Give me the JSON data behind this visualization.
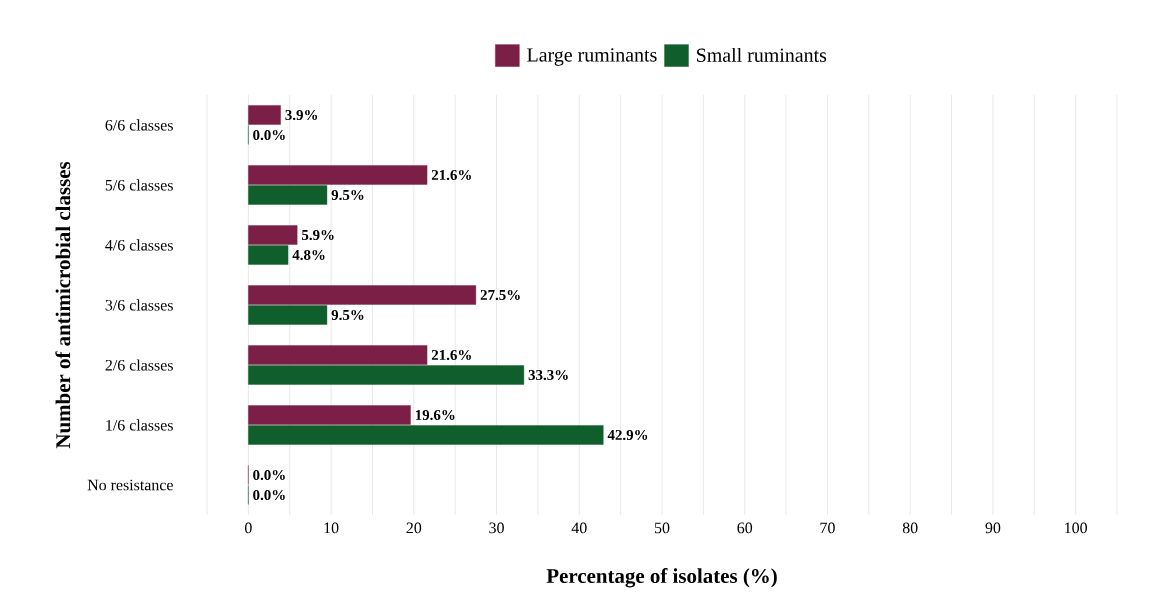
{
  "chart_data": {
    "type": "bar",
    "orientation": "horizontal",
    "categories": [
      "6/6 classes",
      "5/6 classes",
      "4/6 classes",
      "3/6 classes",
      "2/6 classes",
      "1/6 classes",
      "No resistance"
    ],
    "series": [
      {
        "name": "Large ruminants",
        "color": "#7b1f47",
        "values": [
          3.9,
          21.6,
          5.9,
          27.5,
          21.6,
          19.6,
          0.0
        ],
        "value_labels": [
          "3.9%",
          "21.6%",
          "5.9%",
          "27.5%",
          "21.6%",
          "19.6%",
          "0.0%"
        ]
      },
      {
        "name": "Small ruminants",
        "color": "#115e2d",
        "values": [
          0.0,
          9.5,
          4.8,
          9.5,
          33.3,
          42.9,
          0.0
        ],
        "value_labels": [
          "0.0%",
          "9.5%",
          "4.8%",
          "9.5%",
          "33.3%",
          "42.9%",
          "0.0%"
        ]
      }
    ],
    "xlabel": "Percentage of isolates (%)",
    "ylabel": "Number of antimicrobial classes",
    "xlim": [
      -5,
      105
    ],
    "xticks": [
      {
        "value": -5,
        "label": null
      },
      0,
      {
        "value": 5,
        "label": null
      },
      10,
      {
        "value": 15,
        "label": null
      },
      20,
      {
        "value": 25,
        "label": null
      },
      30,
      {
        "value": 35,
        "label": null
      },
      40,
      {
        "value": 45,
        "label": null
      },
      50,
      {
        "value": 55,
        "label": null
      },
      60,
      {
        "value": 65,
        "label": null
      },
      70,
      {
        "value": 75,
        "label": null
      },
      80,
      {
        "value": 85,
        "label": null
      },
      90,
      {
        "value": 95,
        "label": null
      },
      100,
      {
        "value": 105,
        "label": null
      }
    ],
    "grid": "x",
    "legend": "top"
  }
}
